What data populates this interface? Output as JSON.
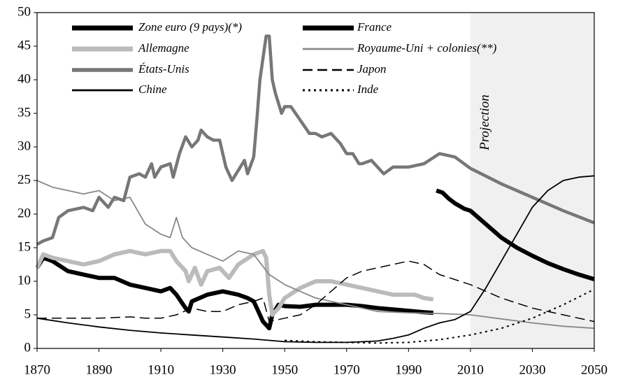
{
  "chart_data": {
    "type": "line",
    "xlim": [
      1870,
      2050
    ],
    "xticks": [
      1870,
      1890,
      1910,
      1930,
      1950,
      1970,
      1990,
      2010,
      2030,
      2050
    ],
    "ylim": [
      0,
      50
    ],
    "yticks": [
      0,
      5,
      10,
      15,
      20,
      25,
      30,
      35,
      40,
      45,
      50
    ],
    "projection": {
      "label": "Projection",
      "from": 2010,
      "to": 2050,
      "color": "#f0f0f0"
    },
    "series": [
      {
        "name": "Zone euro (9 pays)(*)",
        "color": "#000000",
        "line_style": "thick",
        "x": [
          1999,
          2001,
          2003,
          2005,
          2008,
          2010,
          2015,
          2020,
          2025,
          2030,
          2035,
          2040,
          2045,
          2050
        ],
        "values": [
          23.5,
          23.2,
          22.3,
          21.6,
          20.8,
          20.5,
          18.5,
          16.5,
          15,
          13.8,
          12.7,
          11.8,
          11,
          10.3
        ]
      },
      {
        "name": "France",
        "color": "#000000",
        "line_style": "thick",
        "x": [
          1870,
          1872,
          1875,
          1880,
          1885,
          1890,
          1895,
          1900,
          1905,
          1910,
          1913,
          1915,
          1918,
          1919,
          1920,
          1925,
          1930,
          1935,
          1938,
          1940,
          1941,
          1943,
          1945,
          1946,
          1948,
          1950,
          1955,
          1960,
          1965,
          1970,
          1975,
          1980,
          1985,
          1990,
          1995,
          1998
        ],
        "values": [
          12,
          13.5,
          13,
          11.5,
          11,
          10.5,
          10.5,
          9.5,
          9,
          8.5,
          9,
          8,
          6,
          5.5,
          7,
          8,
          8.5,
          8,
          7.5,
          7,
          6,
          4,
          3,
          5,
          6.5,
          6.3,
          6.2,
          6.5,
          6.5,
          6.5,
          6.3,
          6,
          5.8,
          5.6,
          5.4,
          5.3
        ]
      },
      {
        "name": "Allemagne",
        "color": "#bbbbbb",
        "line_style": "thick",
        "x": [
          1870,
          1872,
          1875,
          1880,
          1885,
          1890,
          1895,
          1900,
          1905,
          1910,
          1913,
          1915,
          1918,
          1919,
          1921,
          1923,
          1925,
          1929,
          1932,
          1935,
          1940,
          1943,
          1944,
          1945,
          1946,
          1948,
          1950,
          1955,
          1960,
          1965,
          1970,
          1975,
          1980,
          1985,
          1990,
          1992,
          1995,
          1998
        ],
        "values": [
          12,
          14,
          13.5,
          13,
          12.5,
          13,
          14,
          14.5,
          14,
          14.5,
          14.5,
          13,
          11.5,
          10,
          12,
          9.5,
          11.5,
          12,
          10.5,
          12.5,
          14,
          14.5,
          13.5,
          8,
          5,
          6,
          7.5,
          9,
          10,
          10,
          9.5,
          9,
          8.5,
          8,
          8,
          8,
          7.5,
          7.3
        ]
      },
      {
        "name": "Royaume-Uni + colonies(**)",
        "color": "#888888",
        "line_style": "thin",
        "x": [
          1870,
          1875,
          1880,
          1885,
          1890,
          1895,
          1900,
          1905,
          1910,
          1913,
          1915,
          1917,
          1920,
          1925,
          1930,
          1935,
          1940,
          1945,
          1950,
          1955,
          1960,
          1965,
          1970,
          1975,
          1980,
          1990,
          2000,
          2010,
          2020,
          2030,
          2040,
          2050
        ],
        "values": [
          25,
          24,
          23.5,
          23,
          23.5,
          22,
          22.5,
          18.5,
          17,
          16.5,
          19.5,
          16.5,
          15,
          14,
          13,
          14.5,
          14,
          11,
          9.5,
          8.5,
          7.5,
          7,
          6.5,
          6,
          5.5,
          5.3,
          5.2,
          5,
          4.4,
          3.8,
          3.3,
          3
        ]
      },
      {
        "name": "États-Unis",
        "color": "#777777",
        "line_style": "medium",
        "x": [
          1870,
          1872,
          1875,
          1877,
          1880,
          1885,
          1888,
          1890,
          1893,
          1895,
          1898,
          1900,
          1903,
          1905,
          1907,
          1908,
          1910,
          1913,
          1914,
          1916,
          1918,
          1920,
          1922,
          1923,
          1925,
          1927,
          1929,
          1931,
          1933,
          1935,
          1937,
          1938,
          1940,
          1941,
          1942,
          1944,
          1945,
          1946,
          1947,
          1949,
          1950,
          1952,
          1955,
          1958,
          1960,
          1962,
          1965,
          1968,
          1970,
          1972,
          1974,
          1975,
          1978,
          1980,
          1982,
          1985,
          1990,
          1995,
          2000,
          2005,
          2010,
          2020,
          2030,
          2040,
          2050
        ],
        "values": [
          15.5,
          16,
          16.5,
          19.5,
          20.5,
          21,
          20.5,
          22.5,
          21,
          22.5,
          22,
          25.5,
          26,
          25.5,
          27.5,
          25.5,
          27,
          27.5,
          25.5,
          29,
          31.5,
          30,
          31,
          32.5,
          31.5,
          31,
          31,
          27,
          25,
          26.5,
          28,
          26,
          28.5,
          34,
          40,
          46.5,
          46.5,
          40,
          38,
          35,
          36,
          36,
          34,
          32,
          32,
          31.5,
          32,
          30.5,
          29,
          29,
          27.5,
          27.5,
          28,
          27,
          26,
          27,
          27,
          27.5,
          29,
          28.5,
          26.8,
          24.5,
          22.5,
          20.5,
          18.7
        ]
      },
      {
        "name": "Japon",
        "color": "#000000",
        "line_style": "dashed",
        "x": [
          1870,
          1880,
          1890,
          1900,
          1905,
          1910,
          1915,
          1920,
          1925,
          1930,
          1935,
          1940,
          1943,
          1945,
          1950,
          1955,
          1960,
          1965,
          1970,
          1975,
          1980,
          1985,
          1990,
          1995,
          2000,
          2010,
          2020,
          2030,
          2040,
          2050
        ],
        "values": [
          4.5,
          4.5,
          4.5,
          4.7,
          4.5,
          4.5,
          5,
          6,
          5.5,
          5.5,
          6.5,
          7,
          7.5,
          4,
          4.5,
          5,
          6.5,
          8.5,
          10.5,
          11.5,
          12,
          12.5,
          13,
          12.5,
          11,
          9.5,
          7.5,
          6,
          5,
          4
        ]
      },
      {
        "name": "Chine",
        "color": "#000000",
        "line_style": "thin",
        "x": [
          1870,
          1880,
          1890,
          1900,
          1910,
          1920,
          1930,
          1940,
          1950,
          1960,
          1970,
          1980,
          1985,
          1990,
          1995,
          2000,
          2005,
          2010,
          2015,
          2020,
          2025,
          2030,
          2035,
          2040,
          2045,
          2050
        ],
        "values": [
          4.5,
          3.8,
          3.2,
          2.7,
          2.3,
          2,
          1.7,
          1.4,
          1,
          0.9,
          0.9,
          1.1,
          1.5,
          2,
          3,
          3.8,
          4.3,
          5.5,
          9,
          13,
          17,
          21,
          23.5,
          25,
          25.5,
          25.7
        ]
      },
      {
        "name": "Inde",
        "color": "#000000",
        "line_style": "dotted",
        "x": [
          1950,
          1960,
          1970,
          1980,
          1990,
          2000,
          2010,
          2020,
          2030,
          2040,
          2050
        ],
        "values": [
          1.2,
          1,
          0.9,
          0.8,
          0.9,
          1.3,
          2,
          3,
          4.5,
          6.5,
          8.8
        ]
      }
    ]
  }
}
